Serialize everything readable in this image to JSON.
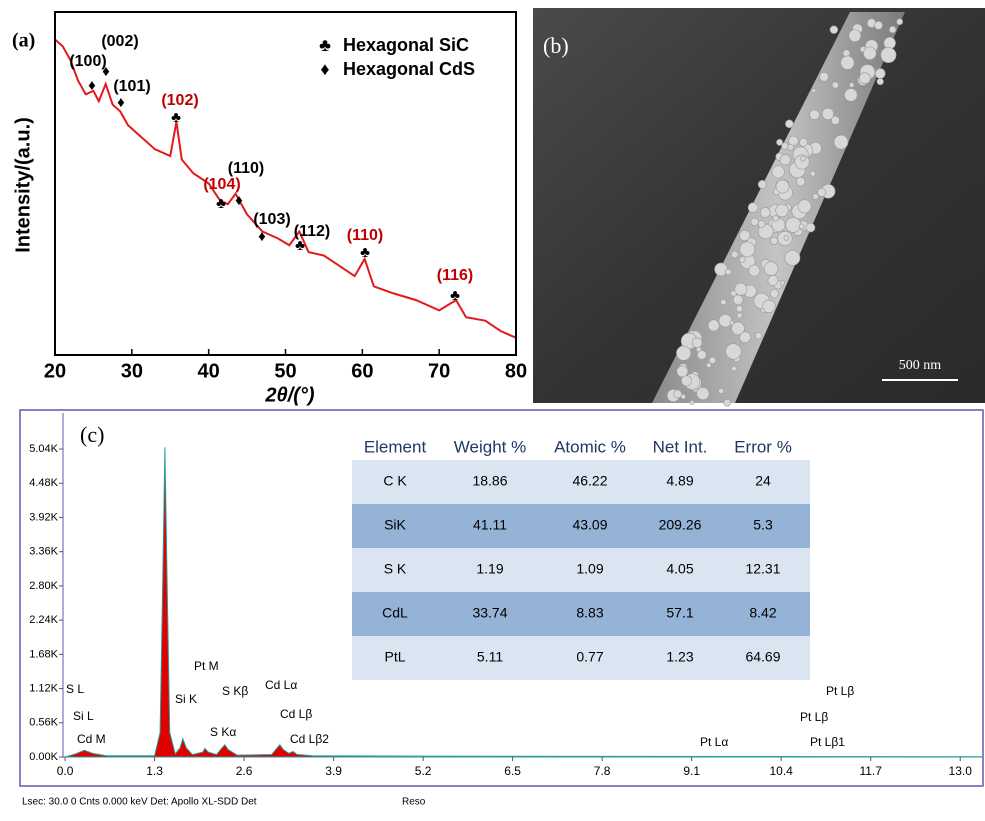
{
  "chart_data": [
    {
      "type": "line",
      "panel": "(a)",
      "xlabel": "2θ/(°)",
      "ylabel": "Intensity/(a.u.)",
      "color": "#e31a1c",
      "x": [
        20,
        21,
        22,
        23,
        24,
        25,
        25.7,
        26.6,
        27.5,
        28.5,
        29.5,
        31,
        33,
        35,
        35.8,
        36.5,
        38,
        40,
        41.5,
        42.5,
        43.5,
        45,
        47,
        49,
        50.5,
        51.8,
        53,
        55,
        57,
        59,
        60.3,
        61.5,
        64,
        67,
        70,
        72.2,
        73.5,
        76,
        78,
        80
      ],
      "values": [
        92,
        90,
        86,
        80,
        76,
        77,
        74,
        79,
        73,
        71,
        67,
        64,
        60,
        58,
        68,
        57,
        53,
        50,
        45,
        44,
        47,
        41,
        36,
        34,
        32,
        36,
        30,
        29,
        26,
        23,
        28,
        20,
        18,
        16,
        13,
        16,
        11,
        10,
        7,
        5
      ],
      "xlim": [
        20,
        80
      ],
      "xticks": [
        20,
        30,
        40,
        50,
        60,
        70,
        80
      ],
      "ylim": [
        0,
        100
      ],
      "legend": [
        {
          "symbol": "♣",
          "label": "Hexagonal SiC"
        },
        {
          "symbol": "♦",
          "label": "Hexagonal CdS"
        }
      ],
      "annotations": [
        {
          "text": "(100)",
          "symbol": "♦",
          "color": "#000000"
        },
        {
          "text": "(002)",
          "symbol": "♦",
          "color": "#000000"
        },
        {
          "text": "(101)",
          "symbol": "♦",
          "color": "#000000"
        },
        {
          "text": "(102)",
          "symbol": "♣",
          "color": "#c00000"
        },
        {
          "text": "(104)",
          "symbol": "♣",
          "color": "#c00000"
        },
        {
          "text": "(110)",
          "symbol": "♦",
          "color": "#000000"
        },
        {
          "text": "(103)",
          "symbol": "♦",
          "color": "#000000"
        },
        {
          "text": "(112)",
          "symbol": "♣",
          "color": "#000000"
        },
        {
          "text": "(110)",
          "symbol": "♣",
          "color": "#c00000"
        },
        {
          "text": "(116)",
          "symbol": "♣",
          "color": "#c00000"
        }
      ]
    },
    {
      "type": "area",
      "panel": "(c)",
      "color": "#e00000",
      "x": [
        0.0,
        0.15,
        0.28,
        0.4,
        0.6,
        1.3,
        1.38,
        1.42,
        1.45,
        1.48,
        1.52,
        1.6,
        1.67,
        1.71,
        1.76,
        1.85,
        2.0,
        2.03,
        2.08,
        2.2,
        2.28,
        2.32,
        2.37,
        2.5,
        3.0,
        3.08,
        3.12,
        3.17,
        3.25,
        3.31,
        3.37,
        3.6,
        5,
        8,
        10,
        13.3
      ],
      "values": [
        0,
        50,
        110,
        60,
        20,
        20,
        400,
        3000,
        5070,
        3000,
        400,
        50,
        150,
        300,
        150,
        40,
        80,
        140,
        80,
        40,
        150,
        200,
        120,
        30,
        40,
        150,
        200,
        120,
        60,
        90,
        40,
        20,
        15,
        10,
        8,
        5
      ],
      "xlim": [
        -0.03,
        13.36
      ],
      "xticks": [
        {
          "value": 0,
          "label": "0.0"
        },
        1.3,
        2.6,
        3.9,
        5.2,
        6.5,
        7.8,
        9.1,
        10.4,
        11.7,
        {
          "value": 13,
          "label": "13.0"
        }
      ],
      "ylim": [
        0,
        5630
      ],
      "yticks": [
        {
          "value": 0,
          "label": "0.00K"
        },
        {
          "value": 560,
          "label": "0.56K"
        },
        {
          "value": 1120,
          "label": "1.12K"
        },
        {
          "value": 1680,
          "label": "1.68K"
        },
        {
          "value": 2240,
          "label": "2.24K"
        },
        {
          "value": 2800,
          "label": "2.80K"
        },
        {
          "value": 3360,
          "label": "3.36K"
        },
        {
          "value": 3920,
          "label": "3.92K"
        },
        {
          "value": 4480,
          "label": "4.48K"
        },
        {
          "value": 5040,
          "label": "5.04K"
        }
      ],
      "annotations": [
        "S L",
        "Si L",
        "Cd M",
        "Pt M",
        "Si K",
        "S Kβ",
        "S Kα",
        "Cd Lα",
        "Cd Lβ",
        "Cd Lβ2",
        "Pt Lα",
        "Pt Lβ",
        "Pt Lβ",
        "Pt Lβ1"
      ],
      "footer": [
        "Lsec: 30.0 0 Cnts  0.000 keV Det: Apollo XL-SDD Det",
        "Reso"
      ]
    }
  ],
  "image_b": {
    "panel": "(b)",
    "scale_bar": "500 nm"
  },
  "table": {
    "header": [
      "Element",
      "Weight %",
      "Atomic %",
      "Net Int.",
      "Error %"
    ],
    "rows": [
      [
        "C K",
        18.86,
        46.22,
        4.89,
        24
      ],
      [
        "SiK",
        41.11,
        43.09,
        209.26,
        5.3
      ],
      [
        "S K",
        1.19,
        1.09,
        4.05,
        12.31
      ],
      [
        "CdL",
        33.74,
        8.83,
        57.1,
        8.42
      ],
      [
        "PtL",
        5.11,
        0.77,
        1.23,
        64.69
      ]
    ]
  }
}
